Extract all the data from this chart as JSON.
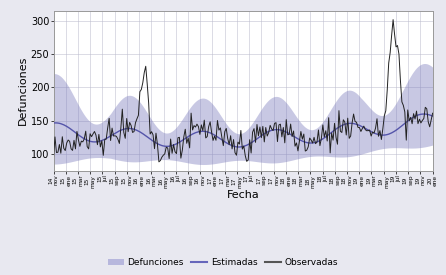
{
  "xlabel": "Fecha",
  "ylabel": "Defunciones",
  "ylim": [
    75,
    315
  ],
  "yticks": [
    100,
    150,
    200,
    250,
    300
  ],
  "background_color": "#e8e8f0",
  "plot_bg_color": "#ffffff",
  "band_color": "#7777bb",
  "band_alpha": 0.4,
  "estimated_color": "#5555aa",
  "observed_color": "#222222",
  "legend_labels": [
    "Defunciones",
    "Estimadas",
    "Observadas"
  ],
  "legend_estim_color": "#6666bb",
  "legend_obs_color": "#555555",
  "legend_band_color": "#8888cc",
  "n_points": 260,
  "seed": 7
}
